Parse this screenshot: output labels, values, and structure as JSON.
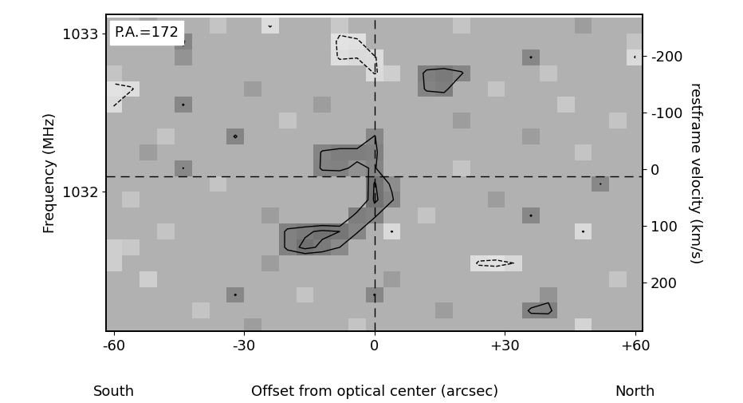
{
  "chart_data": {
    "type": "heatmap",
    "annotations": [
      "P.A.=172"
    ],
    "x_direction_labels": [
      "South",
      "North"
    ],
    "x_label": "Offset from optical center (arcsec)",
    "y_label": "Frequency (MHz)",
    "y2_label": "restframe velocity (km/s)",
    "xlim": [
      -61.7,
      61.7
    ],
    "xticks": [
      -60,
      -30,
      0,
      {
        "value": 30,
        "label": "+30"
      },
      {
        "value": 60,
        "label": "+60"
      }
    ],
    "ylim": [
      1031.12,
      1033.12
    ],
    "yticks": [
      1032,
      1033
    ],
    "y2lim": [
      286,
      -273
    ],
    "y2ticks": [
      -200,
      -100,
      0,
      100,
      200
    ],
    "reference_lines": {
      "x": 0,
      "y": 1032.1
    },
    "cell_range": [
      -4,
      9
    ],
    "contour_levels": [
      -2,
      2,
      3
    ],
    "x": [
      -60,
      -56,
      -52,
      -48,
      -44,
      -40,
      -36,
      -32,
      -28,
      -24,
      -20,
      -16,
      -12,
      -8,
      -4,
      0,
      4,
      8,
      12,
      16,
      20,
      24,
      28,
      32,
      36,
      40,
      44,
      48,
      52,
      56,
      60
    ],
    "y": [
      1033.05,
      1032.95,
      1032.85,
      1032.75,
      1032.65,
      1032.55,
      1032.45,
      1032.35,
      1032.25,
      1032.15,
      1032.05,
      1031.95,
      1031.85,
      1031.75,
      1031.65,
      1031.55,
      1031.45,
      1031.35,
      1031.25,
      1031.15
    ],
    "cells": [
      [
        0,
        0,
        1,
        0,
        0,
        0,
        -1,
        0,
        0,
        -2.2,
        0,
        0,
        0,
        -1.2,
        0,
        0,
        0,
        0,
        0,
        0,
        -1,
        0,
        0,
        0,
        0,
        0,
        0,
        1,
        0,
        0,
        0
      ],
      [
        0,
        0,
        0,
        0,
        2.2,
        0,
        0,
        0,
        0,
        0,
        0,
        0,
        0,
        -2.5,
        -2.4,
        0,
        0,
        0,
        0,
        0,
        0,
        0,
        0,
        0,
        0,
        0,
        0,
        0,
        0,
        0,
        -1
      ],
      [
        0,
        0,
        0,
        0,
        1.5,
        0,
        0,
        0,
        0,
        0,
        0,
        0,
        0,
        -2.3,
        -2.1,
        -2.2,
        0,
        0,
        0,
        0,
        0,
        0,
        0,
        0,
        2.1,
        0,
        0,
        0,
        0,
        0,
        -2.1
      ],
      [
        -1,
        0,
        0,
        0,
        0,
        0,
        0,
        0,
        0,
        0,
        0,
        0,
        0,
        0,
        0,
        -2.1,
        -1.5,
        0,
        2.5,
        2.8,
        2.2,
        0,
        0,
        0,
        0,
        -1,
        0,
        0,
        0,
        0,
        0
      ],
      [
        -2.5,
        -2.3,
        0,
        0,
        0,
        0,
        0,
        0,
        1,
        0,
        0,
        0,
        0,
        0,
        0,
        0,
        0,
        0,
        2.3,
        2.6,
        0,
        0,
        -1,
        0,
        0,
        0,
        0,
        0,
        0,
        0,
        0
      ],
      [
        -2.2,
        0,
        0,
        0,
        2.1,
        0,
        0,
        0,
        0,
        0,
        0,
        0,
        1,
        0,
        0,
        0,
        0,
        0,
        0,
        0,
        0,
        0,
        0,
        0,
        0,
        0,
        -1.2,
        0,
        0,
        0,
        0
      ],
      [
        0,
        0,
        0,
        0,
        0,
        0,
        0,
        0,
        0,
        0,
        -1,
        0,
        0,
        0,
        0,
        0,
        0,
        0,
        0,
        0,
        1,
        0,
        0,
        0,
        0,
        0,
        0,
        0,
        0,
        -1,
        0
      ],
      [
        0,
        0,
        0,
        -1,
        0,
        0,
        0,
        2.2,
        0,
        0,
        0,
        0,
        0,
        0,
        0,
        2.1,
        0,
        0,
        0,
        0,
        0,
        0,
        0,
        0,
        1,
        0,
        0,
        0,
        0,
        0,
        0
      ],
      [
        0,
        0,
        1,
        0,
        0,
        0,
        0,
        0,
        0,
        0,
        0,
        0,
        2.2,
        2.6,
        2.6,
        2.4,
        0,
        0,
        0,
        0,
        0,
        0,
        0,
        0,
        0,
        0,
        0,
        -1,
        0,
        0,
        0
      ],
      [
        0,
        0,
        0,
        0,
        2.05,
        0,
        0,
        0,
        0,
        0,
        0,
        0,
        2.3,
        2.4,
        1.6,
        2.2,
        0,
        0,
        0,
        0,
        -1,
        0,
        0,
        0,
        0,
        0,
        0,
        0,
        0,
        0,
        0
      ],
      [
        0,
        0,
        0,
        0,
        0,
        0,
        -1,
        0,
        0,
        0,
        0,
        0,
        0,
        0,
        0,
        3.1,
        1.8,
        0,
        0,
        0,
        0,
        0,
        0,
        0,
        0,
        0,
        0,
        0,
        2.05,
        0,
        0
      ],
      [
        0,
        -1,
        0,
        0,
        0,
        0,
        0,
        0,
        0,
        0,
        0,
        0,
        0,
        0,
        0,
        3.2,
        2.2,
        0,
        0,
        0,
        0,
        0,
        1,
        0,
        0,
        0,
        0,
        0,
        0,
        0,
        0
      ],
      [
        0,
        0,
        0,
        0,
        0,
        0,
        0,
        0,
        0,
        1,
        0,
        0,
        0,
        0,
        2.6,
        2.3,
        0,
        0,
        -1,
        0,
        0,
        0,
        0,
        0,
        2.1,
        0,
        0,
        0,
        0,
        0,
        0
      ],
      [
        0,
        0,
        0,
        -1,
        0,
        0,
        0,
        0,
        0,
        0,
        2.4,
        2.8,
        3.2,
        3.0,
        2.2,
        0,
        -2.1,
        0,
        0,
        0,
        0,
        0,
        0,
        0,
        0,
        0,
        0,
        -2.1,
        0,
        0,
        0
      ],
      [
        -1.5,
        -1.2,
        0,
        0,
        0,
        0,
        0,
        0,
        0,
        0,
        2.4,
        3.3,
        2.8,
        2.0,
        0,
        0,
        0,
        0,
        0,
        0,
        0,
        0,
        0,
        0,
        0,
        0,
        0,
        0,
        0,
        0,
        0
      ],
      [
        -1.5,
        0,
        0,
        0,
        0,
        0,
        0,
        0,
        0,
        1,
        0,
        0,
        0,
        0,
        0,
        0,
        0,
        0,
        0,
        0,
        0,
        -2.3,
        -2.5,
        -2.0,
        0,
        0,
        0,
        0,
        0,
        0,
        0
      ],
      [
        0,
        0,
        -1.5,
        0,
        0,
        0,
        0,
        0,
        0,
        0,
        0,
        0,
        0,
        0,
        0,
        0,
        1,
        0,
        0,
        0,
        0,
        0,
        0,
        0,
        0,
        0,
        0,
        0,
        0,
        -1,
        0
      ],
      [
        0,
        0,
        0,
        0,
        0,
        0,
        0,
        2.1,
        0,
        0,
        0,
        -1,
        0,
        0,
        0,
        2.1,
        0,
        0,
        0,
        0,
        0,
        0,
        0,
        0,
        0,
        1.5,
        0,
        0,
        0,
        0,
        0
      ],
      [
        0,
        0,
        0,
        0,
        0,
        -1,
        0,
        0,
        0,
        0,
        0,
        0,
        0,
        0,
        0,
        0,
        0,
        0,
        0,
        1,
        0,
        0,
        0,
        0,
        2.4,
        2.5,
        0,
        0,
        0,
        0,
        0
      ],
      [
        0,
        0,
        0,
        0,
        0,
        0,
        0,
        0,
        1,
        0,
        0,
        0,
        0,
        0,
        -1,
        0,
        0,
        0,
        0,
        0,
        0,
        0,
        0,
        0,
        0,
        0,
        0,
        -1.8,
        0,
        0,
        0
      ]
    ]
  }
}
